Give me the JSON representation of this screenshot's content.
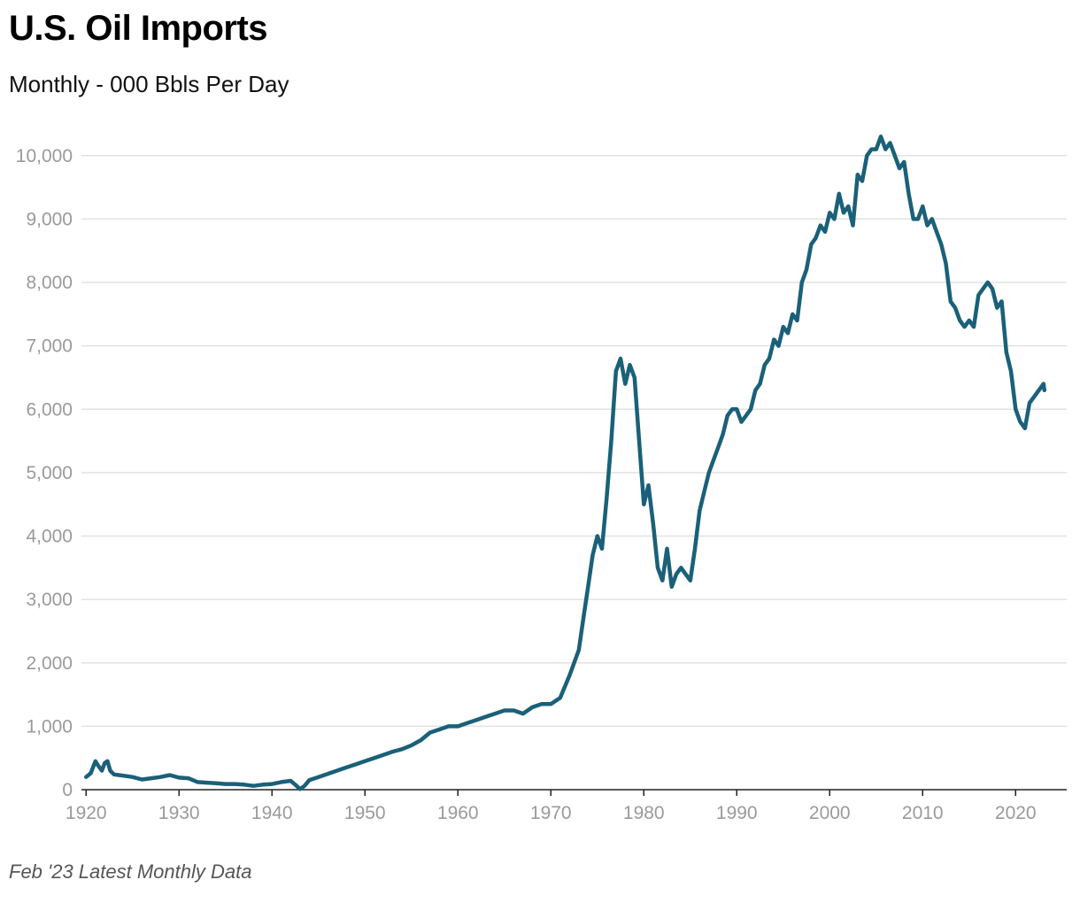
{
  "header": {
    "title": "U.S. Oil Imports",
    "subtitle": "Monthly - 000 Bbls Per Day"
  },
  "footer": {
    "note": "Feb '23 Latest Monthly Data"
  },
  "chart_data": {
    "type": "line",
    "title": "U.S. Oil Imports",
    "subtitle": "Monthly - 000 Bbls Per Day",
    "xlabel": "",
    "ylabel": "",
    "xlim": [
      1919.5,
      2025.5
    ],
    "ylim": [
      0,
      10500
    ],
    "x_ticks": [
      1920,
      1930,
      1940,
      1950,
      1960,
      1970,
      1980,
      1990,
      2000,
      2010,
      2020
    ],
    "x_tick_labels": [
      "1920",
      "1930",
      "1940",
      "1950",
      "1960",
      "1970",
      "1980",
      "1990",
      "2000",
      "2010",
      "2020"
    ],
    "y_ticks": [
      0,
      1000,
      2000,
      3000,
      4000,
      5000,
      6000,
      7000,
      8000,
      9000,
      10000
    ],
    "y_tick_labels": [
      "0",
      "1,000",
      "2,000",
      "3,000",
      "4,000",
      "5,000",
      "6,000",
      "7,000",
      "8,000",
      "9,000",
      "10,000"
    ],
    "grid": true,
    "line_color": "#1a6079",
    "series": [
      {
        "name": "U.S. Oil Imports",
        "x": [
          1920.0,
          1920.5,
          1921.0,
          1921.3,
          1921.7,
          1922.0,
          1922.3,
          1922.6,
          1923.0,
          1923.5,
          1924.0,
          1925.0,
          1926.0,
          1927.0,
          1928.0,
          1929.0,
          1930.0,
          1931.0,
          1932.0,
          1933.0,
          1934.0,
          1935.0,
          1936.0,
          1937.0,
          1938.0,
          1939.0,
          1940.0,
          1941.0,
          1942.0,
          1942.5,
          1943.0,
          1943.5,
          1944.0,
          1945.0,
          1946.0,
          1947.0,
          1948.0,
          1949.0,
          1950.0,
          1951.0,
          1952.0,
          1953.0,
          1954.0,
          1955.0,
          1956.0,
          1957.0,
          1958.0,
          1959.0,
          1960.0,
          1961.0,
          1962.0,
          1963.0,
          1964.0,
          1965.0,
          1966.0,
          1967.0,
          1968.0,
          1969.0,
          1970.0,
          1971.0,
          1972.0,
          1973.0,
          1973.5,
          1974.0,
          1974.5,
          1975.0,
          1975.5,
          1976.0,
          1976.5,
          1977.0,
          1977.5,
          1978.0,
          1978.5,
          1979.0,
          1979.5,
          1980.0,
          1980.5,
          1981.0,
          1981.5,
          1982.0,
          1982.5,
          1983.0,
          1983.5,
          1984.0,
          1984.5,
          1985.0,
          1985.5,
          1986.0,
          1986.5,
          1987.0,
          1987.5,
          1988.0,
          1988.5,
          1989.0,
          1989.5,
          1990.0,
          1990.5,
          1991.0,
          1991.5,
          1992.0,
          1992.5,
          1993.0,
          1993.5,
          1994.0,
          1994.5,
          1995.0,
          1995.5,
          1996.0,
          1996.5,
          1997.0,
          1997.5,
          1998.0,
          1998.5,
          1999.0,
          1999.5,
          2000.0,
          2000.5,
          2001.0,
          2001.5,
          2002.0,
          2002.5,
          2003.0,
          2003.5,
          2004.0,
          2004.5,
          2005.0,
          2005.5,
          2006.0,
          2006.5,
          2007.0,
          2007.5,
          2008.0,
          2008.5,
          2009.0,
          2009.5,
          2010.0,
          2010.5,
          2011.0,
          2011.5,
          2012.0,
          2012.5,
          2013.0,
          2013.5,
          2014.0,
          2014.5,
          2015.0,
          2015.5,
          2016.0,
          2016.5,
          2017.0,
          2017.5,
          2018.0,
          2018.5,
          2019.0,
          2019.5,
          2020.0,
          2020.5,
          2021.0,
          2021.5,
          2022.0,
          2022.5,
          2023.0,
          2023.1
        ],
        "values": [
          200,
          260,
          450,
          380,
          300,
          420,
          450,
          300,
          240,
          230,
          220,
          200,
          160,
          180,
          200,
          230,
          190,
          180,
          120,
          110,
          100,
          90,
          90,
          80,
          60,
          80,
          90,
          120,
          140,
          80,
          10,
          60,
          150,
          200,
          250,
          300,
          350,
          400,
          450,
          500,
          550,
          600,
          640,
          700,
          780,
          900,
          950,
          1000,
          1000,
          1050,
          1100,
          1150,
          1200,
          1250,
          1250,
          1200,
          1300,
          1350,
          1350,
          1450,
          1800,
          2200,
          2700,
          3200,
          3700,
          4000,
          3800,
          4600,
          5500,
          6600,
          6800,
          6400,
          6700,
          6500,
          5500,
          4500,
          4800,
          4200,
          3500,
          3300,
          3800,
          3200,
          3400,
          3500,
          3400,
          3300,
          3800,
          4400,
          4700,
          5000,
          5200,
          5400,
          5600,
          5900,
          6000,
          6000,
          5800,
          5900,
          6000,
          6300,
          6400,
          6700,
          6800,
          7100,
          7000,
          7300,
          7200,
          7500,
          7400,
          8000,
          8200,
          8600,
          8700,
          8900,
          8800,
          9100,
          9000,
          9400,
          9100,
          9200,
          8900,
          9700,
          9600,
          10000,
          10100,
          10100,
          10300,
          10100,
          10200,
          10000,
          9800,
          9900,
          9400,
          9000,
          9000,
          9200,
          8900,
          9000,
          8800,
          8600,
          8300,
          7700,
          7600,
          7400,
          7300,
          7400,
          7300,
          7800,
          7900,
          8000,
          7900,
          7600,
          7700,
          6900,
          6600,
          6000,
          5800,
          5700,
          6100,
          6200,
          6300,
          6400,
          6300
        ]
      }
    ]
  }
}
